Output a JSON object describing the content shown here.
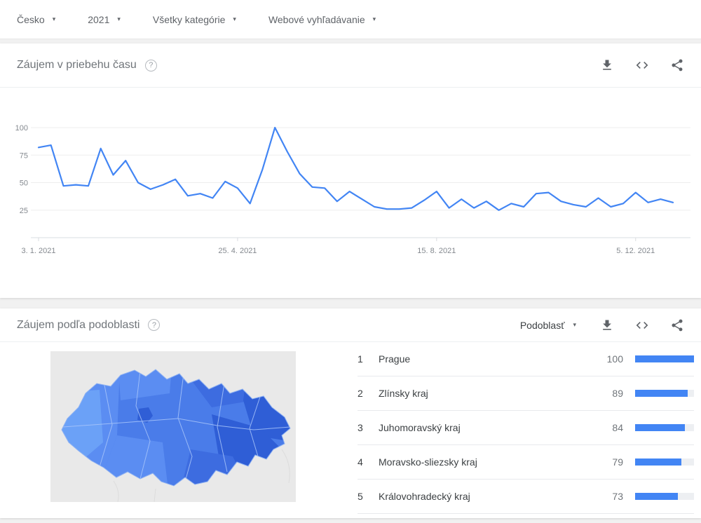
{
  "theme": {
    "accent": "#4285f4",
    "page-bg": "#f1f1f1",
    "card-bg": "#ffffff",
    "text-muted": "#70757a",
    "icon-gray": "#5f6368",
    "grid-line": "#ededed",
    "axis-line": "#dadce0",
    "map-bg": "#e9e9e9",
    "map-shade-1": "#6ba1f7",
    "map-shade-2": "#5b8df2",
    "map-shade-3": "#4a7ce9",
    "map-shade-4": "#3d6ce0",
    "map-shade-5": "#2f5ed6",
    "map-border": "#a9c6fa"
  },
  "icons": {
    "chevron_down": "▾",
    "help": "?",
    "actions": [
      "download-icon",
      "embed-icon",
      "share-icon"
    ]
  },
  "topbar": {
    "filters": [
      {
        "id": "geo",
        "label": "Česko"
      },
      {
        "id": "time",
        "label": "2021"
      },
      {
        "id": "category",
        "label": "Všetky kategórie"
      },
      {
        "id": "search-type",
        "label": "Webové vyhľadávanie"
      }
    ]
  },
  "interest_over_time": {
    "title": "Záujem v priebehu času"
  },
  "interest_by_region": {
    "title": "Záujem podľa podoblasti",
    "mode_label": "Podoblasť",
    "map_country": "Czechia"
  },
  "chart_data": [
    {
      "id": "interest-over-time",
      "type": "line",
      "title": "Záujem v priebehu času",
      "x_unit": "week of 2021",
      "x_tick_labels": [
        "3. 1. 2021",
        "25. 4. 2021",
        "15. 8. 2021",
        "5. 12. 2021"
      ],
      "x_tick_indices": [
        0,
        16,
        32,
        48
      ],
      "yticks": [
        25,
        50,
        75,
        100
      ],
      "ylim": [
        0,
        100
      ],
      "grid": true,
      "legend": false,
      "line_color": "#4285f4",
      "series": [
        {
          "name": "Záujem",
          "values": [
            82,
            84,
            47,
            48,
            47,
            81,
            57,
            70,
            50,
            44,
            48,
            53,
            38,
            40,
            36,
            51,
            45,
            31,
            62,
            100,
            78,
            58,
            46,
            45,
            33,
            42,
            35,
            28,
            26,
            26,
            27,
            34,
            42,
            27,
            35,
            27,
            33,
            25,
            31,
            28,
            40,
            41,
            33,
            30,
            28,
            36,
            28,
            31,
            41,
            32,
            35,
            32
          ]
        }
      ]
    },
    {
      "id": "interest-by-subregion",
      "type": "bar",
      "title": "Záujem podľa podoblasti",
      "bar_color": "#4285f4",
      "value_max": 100,
      "categories": [
        "Prague",
        "Zlínsky kraj",
        "Juhomoravský kraj",
        "Moravsko-sliezsky kraj",
        "Královohradecký kraj"
      ],
      "values": [
        100,
        89,
        84,
        79,
        73
      ],
      "rows": [
        {
          "rank": 1,
          "name": "Prague",
          "value": 100
        },
        {
          "rank": 2,
          "name": "Zlínsky kraj",
          "value": 89
        },
        {
          "rank": 3,
          "name": "Juhomoravský kraj",
          "value": 84
        },
        {
          "rank": 4,
          "name": "Moravsko-sliezsky kraj",
          "value": 79
        },
        {
          "rank": 5,
          "name": "Královohradecký kraj",
          "value": 73
        }
      ]
    }
  ]
}
